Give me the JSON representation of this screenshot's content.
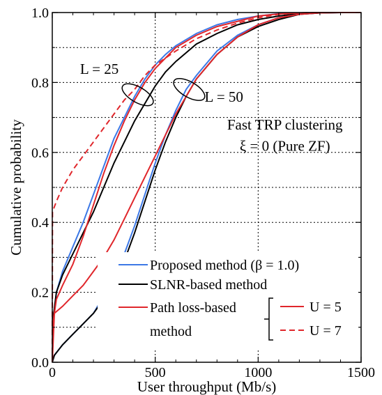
{
  "chart_data": {
    "type": "line",
    "xlabel": "User throughput (Mb/s)",
    "ylabel": "Cumulative probability",
    "xlim": [
      0,
      1500
    ],
    "ylim": [
      0,
      1.0
    ],
    "xticks": [
      "0",
      "500",
      "1000",
      "1500"
    ],
    "yticks": [
      "0.0",
      "0.2",
      "0.4",
      "0.6",
      "0.8",
      "1.0"
    ],
    "grid": true,
    "legend_placement": "bottom-right",
    "annotations": {
      "condition_line1": "Fast TRP clustering",
      "condition_line2": "ξ = 0 (Pure ZF)",
      "group_l25": "L = 25",
      "group_l50": "L = 50"
    },
    "legend": {
      "proposed": "Proposed method (β = 1.0)",
      "slnr": "SLNR-based method",
      "pathloss_line1": "Path loss-based",
      "pathloss_line2": "method",
      "u5": "U = 5",
      "u7": "U = 7"
    },
    "colors": {
      "proposed": "#3c78e6",
      "slnr": "#000000",
      "pathloss": "#e0262b"
    },
    "series": [
      {
        "method": "proposed",
        "group": "L = 25",
        "color": "#3c78e6",
        "dash": "solid",
        "x": [
          0,
          5,
          20,
          50,
          100,
          150,
          200,
          250,
          300,
          350,
          400,
          450,
          500,
          550,
          600,
          700,
          800,
          900,
          1000,
          1100,
          1200,
          1300,
          1400,
          1500
        ],
        "y": [
          0.0,
          0.12,
          0.2,
          0.26,
          0.33,
          0.4,
          0.48,
          0.56,
          0.64,
          0.7,
          0.76,
          0.81,
          0.85,
          0.88,
          0.905,
          0.94,
          0.965,
          0.98,
          0.99,
          0.997,
          0.999,
          1.0,
          1.0,
          1.0
        ]
      },
      {
        "method": "slnr",
        "group": "L = 25",
        "color": "#000000",
        "dash": "solid",
        "x": [
          0,
          5,
          20,
          50,
          100,
          150,
          200,
          250,
          300,
          350,
          400,
          450,
          500,
          550,
          600,
          700,
          800,
          900,
          1000,
          1100,
          1200,
          1300,
          1400,
          1500
        ],
        "y": [
          0.0,
          0.13,
          0.2,
          0.25,
          0.31,
          0.37,
          0.43,
          0.5,
          0.57,
          0.63,
          0.69,
          0.74,
          0.79,
          0.83,
          0.86,
          0.91,
          0.94,
          0.965,
          0.98,
          0.99,
          0.997,
          1.0,
          1.0,
          1.0
        ]
      },
      {
        "method": "pathloss",
        "group": "L = 25",
        "u": "U = 5",
        "color": "#e0262b",
        "dash": "solid",
        "x": [
          0,
          5,
          20,
          50,
          100,
          150,
          200,
          250,
          300,
          350,
          400,
          450,
          500,
          550,
          600,
          700,
          800,
          900,
          1000,
          1100,
          1200,
          1300,
          1400,
          1500
        ],
        "y": [
          0.0,
          0.12,
          0.18,
          0.22,
          0.28,
          0.36,
          0.45,
          0.54,
          0.62,
          0.69,
          0.75,
          0.8,
          0.84,
          0.87,
          0.9,
          0.935,
          0.96,
          0.975,
          0.99,
          0.996,
          0.999,
          1.0,
          1.0,
          1.0
        ]
      },
      {
        "method": "pathloss",
        "group": "L = 25",
        "u": "U = 7",
        "color": "#e0262b",
        "dash": "dashed",
        "x": [
          0,
          1,
          20,
          50,
          100,
          150,
          200,
          250,
          300,
          350,
          400,
          450,
          500,
          550,
          600,
          700,
          800,
          900,
          1000,
          1100,
          1200,
          1300,
          1400,
          1500
        ],
        "y": [
          0.0,
          0.43,
          0.46,
          0.5,
          0.55,
          0.59,
          0.63,
          0.67,
          0.71,
          0.75,
          0.78,
          0.82,
          0.85,
          0.87,
          0.89,
          0.925,
          0.95,
          0.97,
          0.985,
          0.995,
          0.999,
          1.0,
          1.0,
          1.0
        ]
      },
      {
        "method": "proposed",
        "group": "L = 50",
        "color": "#3c78e6",
        "dash": "solid",
        "x": [
          0,
          10,
          50,
          100,
          150,
          200,
          250,
          300,
          350,
          400,
          450,
          500,
          550,
          600,
          650,
          700,
          800,
          900,
          1000,
          1100,
          1200,
          1300,
          1400,
          1500
        ],
        "y": [
          0.0,
          0.02,
          0.05,
          0.08,
          0.11,
          0.14,
          0.19,
          0.24,
          0.31,
          0.39,
          0.48,
          0.57,
          0.65,
          0.72,
          0.78,
          0.82,
          0.89,
          0.935,
          0.965,
          0.985,
          0.995,
          0.999,
          1.0,
          1.0
        ]
      },
      {
        "method": "slnr",
        "group": "L = 50",
        "color": "#000000",
        "dash": "solid",
        "x": [
          0,
          10,
          50,
          100,
          150,
          200,
          250,
          300,
          350,
          400,
          450,
          500,
          550,
          600,
          650,
          700,
          800,
          900,
          1000,
          1100,
          1200,
          1300,
          1400,
          1500
        ],
        "y": [
          0.0,
          0.02,
          0.05,
          0.08,
          0.11,
          0.14,
          0.18,
          0.23,
          0.29,
          0.37,
          0.46,
          0.55,
          0.63,
          0.7,
          0.76,
          0.81,
          0.88,
          0.93,
          0.96,
          0.98,
          0.995,
          0.999,
          1.0,
          1.0
        ]
      },
      {
        "method": "pathloss",
        "group": "L = 50",
        "color": "#e0262b",
        "dash": "solid",
        "x": [
          0,
          10,
          50,
          100,
          150,
          200,
          250,
          300,
          350,
          400,
          450,
          500,
          550,
          600,
          650,
          700,
          800,
          900,
          1000,
          1100,
          1200,
          1300,
          1400,
          1500
        ],
        "y": [
          0.0,
          0.14,
          0.16,
          0.19,
          0.22,
          0.26,
          0.3,
          0.35,
          0.41,
          0.47,
          0.53,
          0.59,
          0.65,
          0.71,
          0.76,
          0.81,
          0.88,
          0.93,
          0.965,
          0.985,
          0.995,
          0.999,
          1.0,
          1.0
        ]
      }
    ]
  }
}
